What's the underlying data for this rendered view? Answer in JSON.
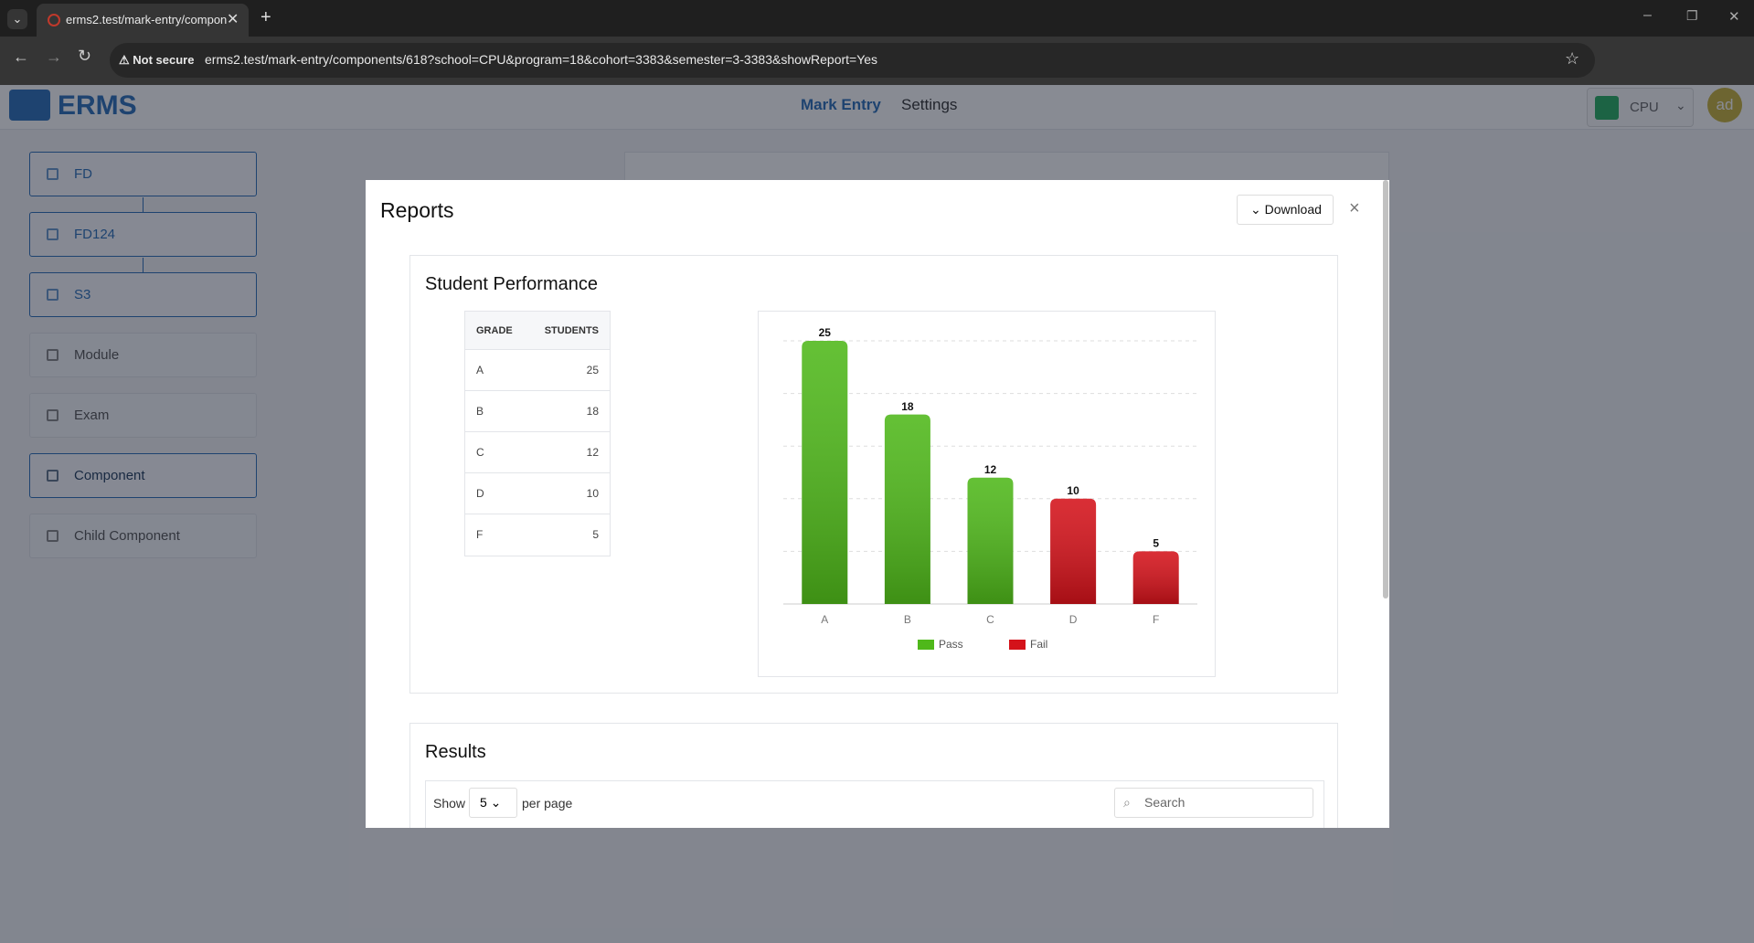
{
  "browser": {
    "tab_title": "erms2.test/mark-entry/compon",
    "security": "Not secure",
    "url": "erms2.test/mark-entry/components/618?school=CPU&program=18&cohort=3383&semester=3-3383&showReport=Yes"
  },
  "header": {
    "brand": "ERMS",
    "nav": [
      "Mark Entry",
      "Settings"
    ],
    "school": "CPU",
    "avatar": "ad"
  },
  "sidebar": [
    "FD",
    "FD124",
    "S3",
    "Module",
    "Exam",
    "Component",
    "Child Component"
  ],
  "modal": {
    "title": "Reports",
    "download": "Download",
    "close": "×"
  },
  "table": {
    "headers": [
      "GRADE",
      "STUDENTS"
    ]
  },
  "chart_data": {
    "type": "bar",
    "title": "Student Performance",
    "categories": [
      "A",
      "B",
      "C",
      "D",
      "F"
    ],
    "series": [
      {
        "name": "Pass",
        "color": "#4fb81a",
        "values": [
          25,
          18,
          12,
          null,
          null
        ]
      },
      {
        "name": "Fail",
        "color": "#d4121a",
        "values": [
          null,
          null,
          null,
          10,
          5
        ]
      }
    ],
    "ylim": [
      0,
      25
    ],
    "ygrid": [
      5,
      10,
      15,
      20,
      25
    ],
    "grid": true
  },
  "results": {
    "title": "Results",
    "show": "Show",
    "per_page_value": "5",
    "per_page": "per page",
    "search": "Search"
  }
}
